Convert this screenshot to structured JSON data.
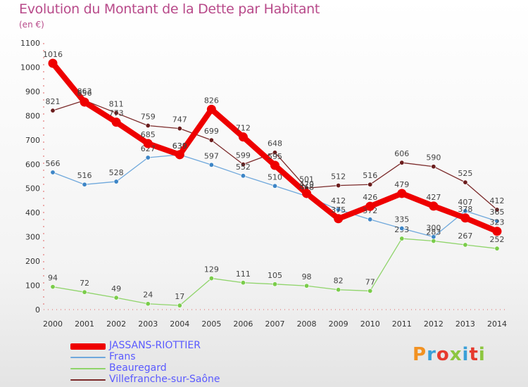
{
  "title": "Evolution du Montant de la Dette par Habitant",
  "unit": "(en €)",
  "logo": {
    "text": "Proxiti",
    "colors": [
      "#f29222",
      "#3aa0d8",
      "#e63a2e",
      "#8dc63f",
      "#3aa0d8",
      "#e63a2e",
      "#8dc63f"
    ]
  },
  "chart_data": {
    "type": "line",
    "title": "Evolution du Montant de la Dette par Habitant",
    "ylabel": "(en €)",
    "xlabel": "",
    "x": [
      "2000",
      "2001",
      "2002",
      "2003",
      "2004",
      "2005",
      "2006",
      "2007",
      "2008",
      "2009",
      "2010",
      "2011",
      "2012",
      "2013",
      "2014"
    ],
    "ylim": [
      0,
      1100
    ],
    "yticks": [
      0,
      100,
      200,
      300,
      400,
      500,
      600,
      700,
      800,
      900,
      1000,
      1100
    ],
    "grid": false,
    "legend_position": "bottom-left",
    "series": [
      {
        "name": "Villefranche-sur-Saône",
        "color": "#7b2a2a",
        "dot": "#6b1d1d",
        "values": [
          821,
          863,
          811,
          759,
          747,
          699,
          599,
          648,
          501,
          512,
          516,
          606,
          590,
          525,
          412
        ]
      },
      {
        "name": "Beauregard",
        "color": "#8fd46a",
        "dot": "#7acc4a",
        "values": [
          94,
          72,
          49,
          24,
          17,
          129,
          111,
          105,
          98,
          82,
          77,
          293,
          283,
          267,
          252
        ]
      },
      {
        "name": "Frans",
        "color": "#6fa8dc",
        "dot": "#3d85c6",
        "values": [
          566,
          516,
          528,
          627,
          639,
          597,
          552,
          510,
          468,
          412,
          372,
          335,
          300,
          407,
          365
        ]
      },
      {
        "name": "JASSANS-RIOTTIER",
        "color": "#ee0000",
        "dot": "#ee0000",
        "values": [
          1016,
          856,
          773,
          685,
          639,
          826,
          712,
          595,
          479,
          375,
          426,
          479,
          427,
          378,
          323
        ]
      }
    ]
  }
}
